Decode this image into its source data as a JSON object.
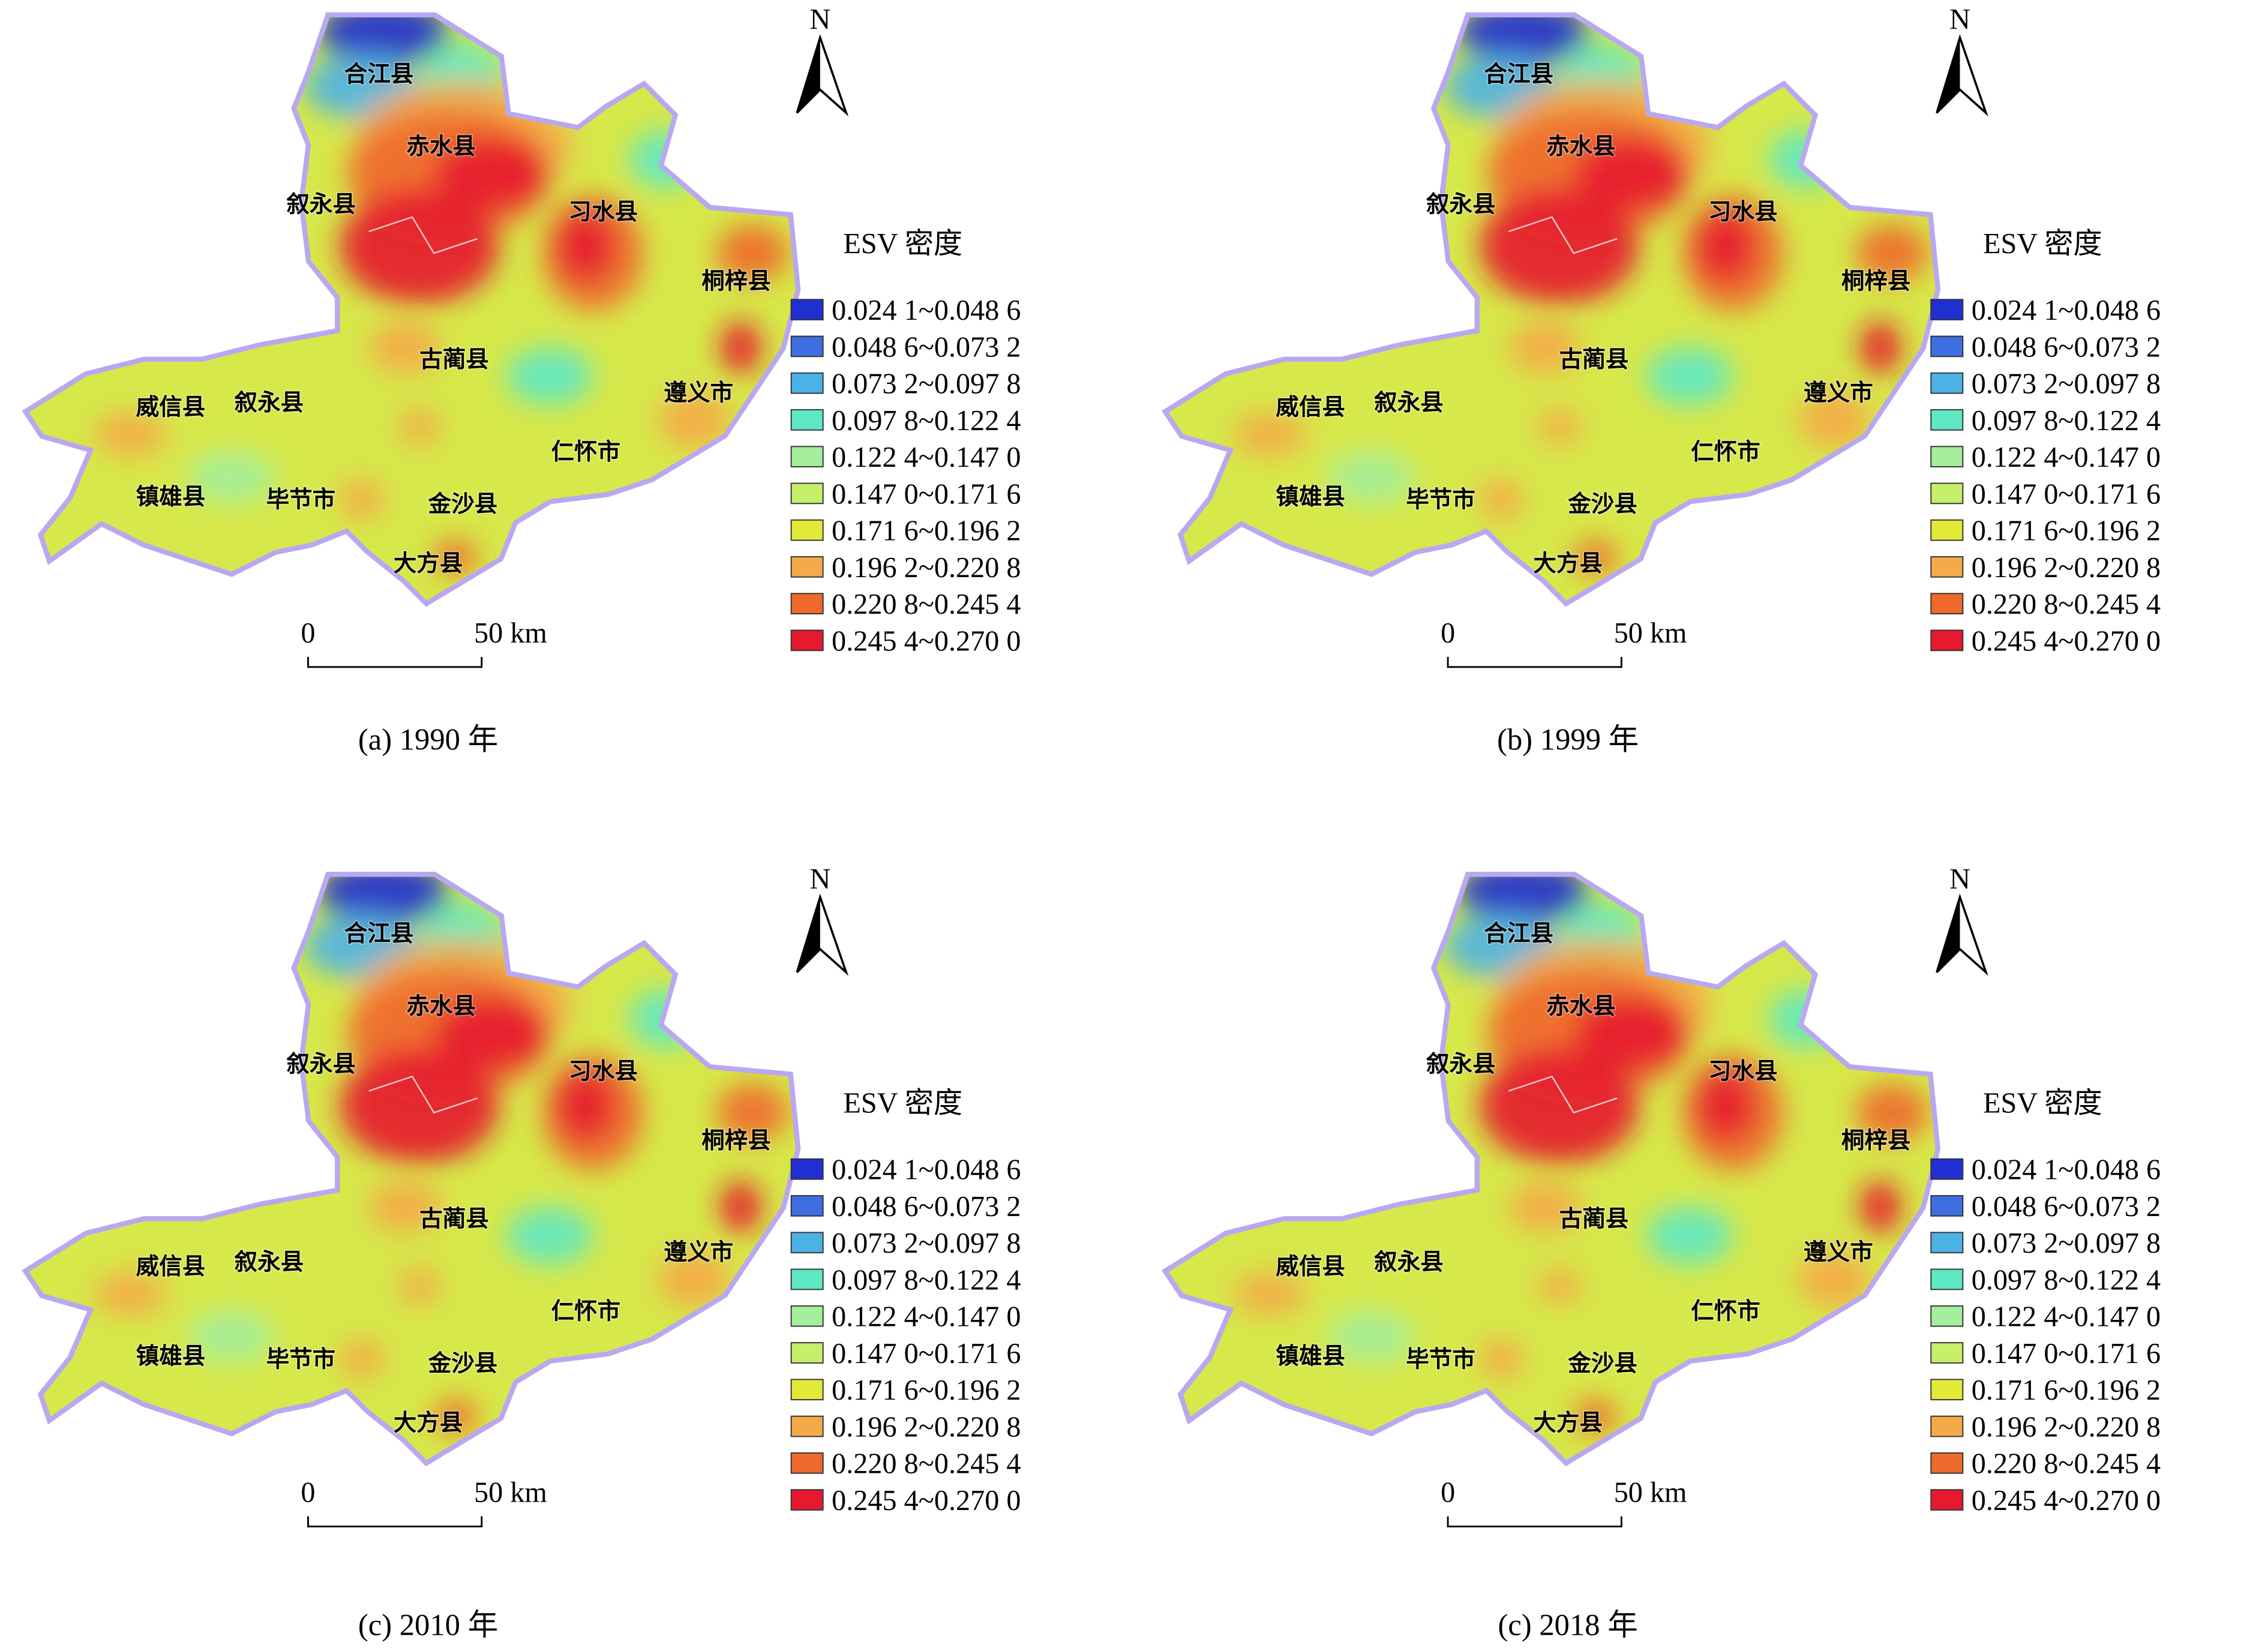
{
  "figure": {
    "north": "N",
    "legend": {
      "title": "ESV 密度",
      "items": [
        {
          "label": "0.024 1~0.048 6",
          "color": "#1f2fd2"
        },
        {
          "label": "0.048 6~0.073 2",
          "color": "#3f6ee0"
        },
        {
          "label": "0.073 2~0.097 8",
          "color": "#4cb2e6"
        },
        {
          "label": "0.097 8~0.122 4",
          "color": "#5ee8c4"
        },
        {
          "label": "0.122 4~0.147 0",
          "color": "#a4ee9c"
        },
        {
          "label": "0.147 0~0.171 6",
          "color": "#c6ef6a"
        },
        {
          "label": "0.171 6~0.196 2",
          "color": "#e2ea38"
        },
        {
          "label": "0.196 2~0.220 8",
          "color": "#f4aa48"
        },
        {
          "label": "0.220 8~0.245 4",
          "color": "#ee6a2c"
        },
        {
          "label": "0.245 4~0.270 0",
          "color": "#e6192e"
        }
      ]
    },
    "scale_bar": {
      "start": "0",
      "end": "50 km"
    },
    "places": [
      "合江县",
      "赤水县",
      "叙永县",
      "习水县",
      "桐梓县",
      "古蔺县",
      "威信县",
      "叙永县",
      "遵义市",
      "仁怀市",
      "镇雄县",
      "毕节市",
      "金沙县",
      "大方县"
    ],
    "panels": [
      {
        "caption": "(a) 1990 年"
      },
      {
        "caption": "(b) 1999 年"
      },
      {
        "caption": "(c) 2010 年"
      },
      {
        "caption": "(c) 2018 年"
      }
    ]
  }
}
